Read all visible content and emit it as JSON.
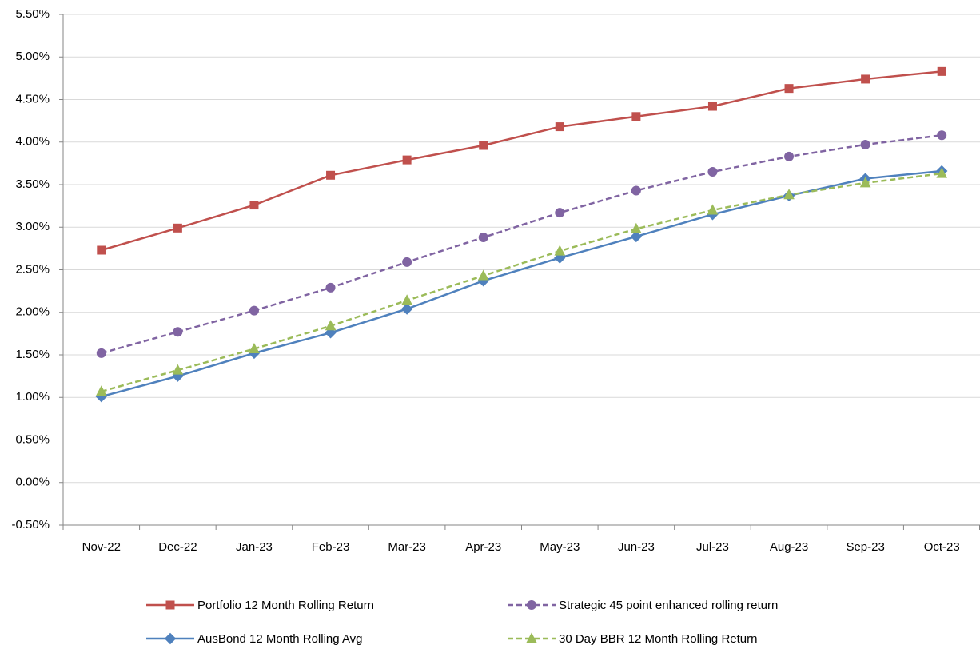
{
  "chart_data": {
    "type": "line",
    "categories": [
      "Nov-22",
      "Dec-22",
      "Jan-23",
      "Feb-23",
      "Mar-23",
      "Apr-23",
      "May-23",
      "Jun-23",
      "Jul-23",
      "Aug-23",
      "Sep-23",
      "Oct-23"
    ],
    "series": [
      {
        "name": "Portfolio 12 Month Rolling Return",
        "color": "#c0504d",
        "marker": "square",
        "dashed": false,
        "values": [
          2.73,
          2.99,
          3.26,
          3.61,
          3.79,
          3.96,
          4.18,
          4.3,
          4.42,
          4.63,
          4.74,
          4.83
        ]
      },
      {
        "name": "Strategic 45 point enhanced rolling return",
        "color": "#8064a2",
        "marker": "circle",
        "dashed": true,
        "values": [
          1.52,
          1.77,
          2.02,
          2.29,
          2.59,
          2.88,
          3.17,
          3.43,
          3.65,
          3.83,
          3.97,
          4.08
        ]
      },
      {
        "name": "AusBond 12 Month Rolling Avg",
        "color": "#4f81bd",
        "marker": "diamond",
        "dashed": false,
        "values": [
          1.01,
          1.25,
          1.52,
          1.76,
          2.04,
          2.37,
          2.64,
          2.89,
          3.15,
          3.37,
          3.57,
          3.66
        ]
      },
      {
        "name": "30 Day BBR 12 Month Rolling Return",
        "color": "#9bbb59",
        "marker": "triangle",
        "dashed": true,
        "values": [
          1.07,
          1.32,
          1.57,
          1.84,
          2.14,
          2.43,
          2.72,
          2.98,
          3.2,
          3.38,
          3.52,
          3.63
        ]
      }
    ],
    "ylim": [
      -0.5,
      5.5
    ],
    "yticks": [
      {
        "value": -0.5,
        "label": "-0.50%"
      },
      {
        "value": 0,
        "label": "0.00%"
      },
      {
        "value": 0.5,
        "label": "0.50%"
      },
      {
        "value": 1,
        "label": "1.00%"
      },
      {
        "value": 1.5,
        "label": "1.50%"
      },
      {
        "value": 2,
        "label": "2.00%"
      },
      {
        "value": 2.5,
        "label": "2.50%"
      },
      {
        "value": 3,
        "label": "3.00%"
      },
      {
        "value": 3.5,
        "label": "3.50%"
      },
      {
        "value": 4,
        "label": "4.00%"
      },
      {
        "value": 4.5,
        "label": "4.50%"
      },
      {
        "value": 5,
        "label": "5.00%"
      },
      {
        "value": 5.5,
        "label": "5.50%"
      }
    ],
    "grid": true
  }
}
